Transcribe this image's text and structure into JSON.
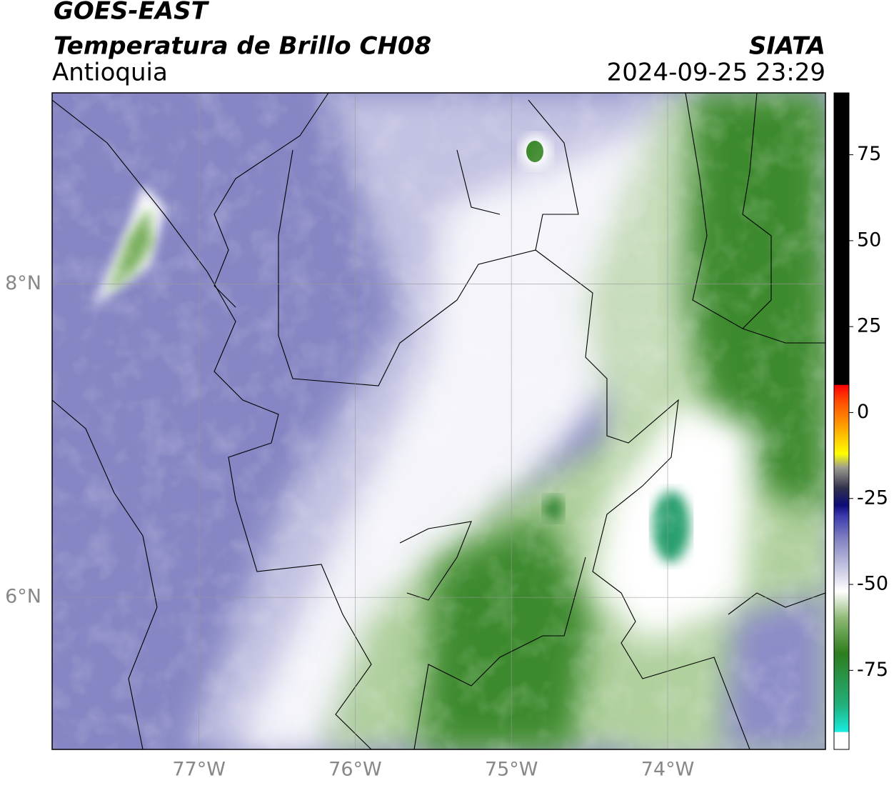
{
  "header": {
    "title": "GOES-EAST",
    "subtitle": "Temperatura de Brillo CH08",
    "region": "Antioquia",
    "source": "SIATA",
    "datetime": "2024-09-25 23:29"
  },
  "map": {
    "xlim": [
      -77.94,
      -72.99
    ],
    "ylim": [
      5.03,
      9.22
    ],
    "xticks": [
      {
        "value": -77,
        "label": "77°W"
      },
      {
        "value": -76,
        "label": "76°W"
      },
      {
        "value": -75,
        "label": "75°W"
      },
      {
        "value": -74,
        "label": "74°W"
      }
    ],
    "yticks": [
      {
        "value": 6,
        "label": "6°N"
      },
      {
        "value": 8,
        "label": "8°N"
      }
    ],
    "grid": true
  },
  "colorbar": {
    "lim": [
      -98,
      93
    ],
    "ticks": [
      -75,
      -50,
      -25,
      0,
      25,
      50,
      75
    ],
    "colormap": [
      {
        "value": -98,
        "color": "#ffffff"
      },
      {
        "value": -93,
        "color": "#ffffff"
      },
      {
        "value": -92.9,
        "color": "#19ece0"
      },
      {
        "value": -85,
        "color": "#22b07a"
      },
      {
        "value": -70,
        "color": "#2e7d1e"
      },
      {
        "value": -60,
        "color": "#8cb872"
      },
      {
        "value": -52,
        "color": "#ffffff"
      },
      {
        "value": -45,
        "color": "#c4c4e2"
      },
      {
        "value": -37,
        "color": "#8484c2"
      },
      {
        "value": -30,
        "color": "#3a3aae"
      },
      {
        "value": -27,
        "color": "#0c0c78"
      },
      {
        "value": -22,
        "color": "#30304c"
      },
      {
        "value": -16,
        "color": "#9c9c90"
      },
      {
        "value": -12,
        "color": "#ffff00"
      },
      {
        "value": -4,
        "color": "#ffa000"
      },
      {
        "value": 3,
        "color": "#ff5000"
      },
      {
        "value": 8,
        "color": "#ff0000"
      },
      {
        "value": 8.1,
        "color": "#000000"
      },
      {
        "value": 93,
        "color": "#000000"
      }
    ]
  }
}
